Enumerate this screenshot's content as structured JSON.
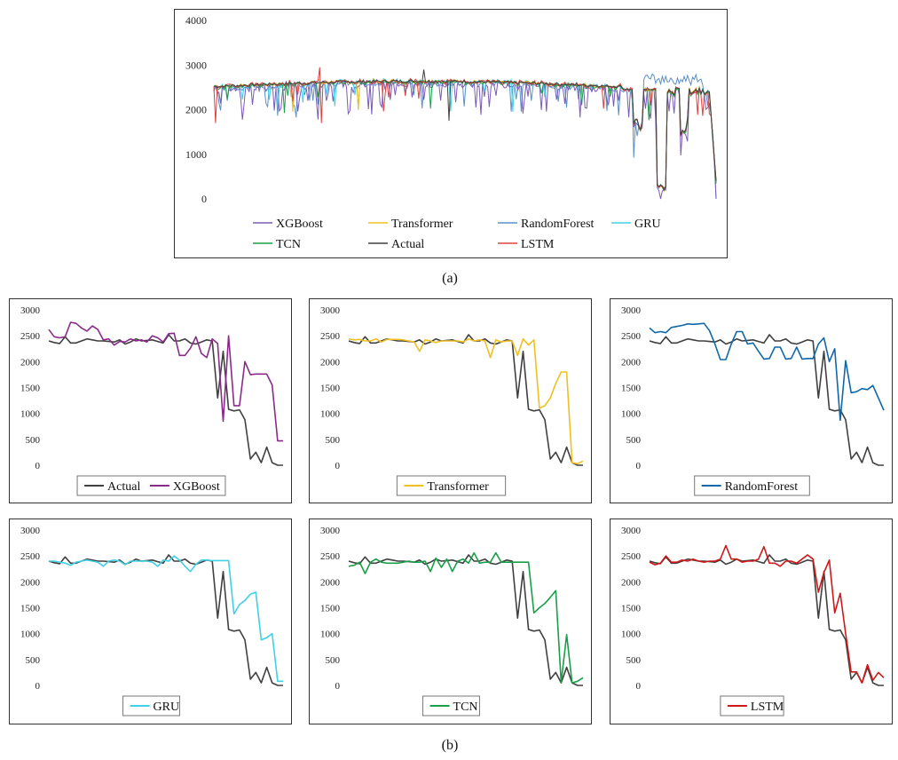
{
  "captions": {
    "a": "(a)",
    "b": "(b)"
  },
  "colors": {
    "Actual": "#404040",
    "XGBoost": "#8b2a8b",
    "Transformer": "#f0c020",
    "RandomForest": "#1068a8",
    "GRU": "#40d0e8",
    "TCN": "#18a048",
    "LSTM": "#d01818",
    "XGBoost_top": "#7a5ab8",
    "RandomForest_top": "#5a90c8",
    "LSTM_top": "#e04040"
  },
  "chart_data": [
    {
      "type": "line",
      "id": "a",
      "title": "",
      "ylim": [
        0,
        4000
      ],
      "yticks": [
        "0",
        "1000",
        "2000",
        "3000",
        "4000"
      ],
      "legend": [
        "XGBoost",
        "Transformer",
        "RandomForest",
        "GRU",
        "TCN",
        "Actual",
        "LSTM"
      ],
      "note": "approximately 300 time steps; series overlap closely",
      "series_profile": {
        "Actual": {
          "base": 2580,
          "drops": [
            [
              250,
              1450
            ],
            [
              268,
              50
            ],
            [
              280,
              1500
            ],
            [
              298,
              0
            ]
          ]
        }
      }
    },
    {
      "type": "line",
      "id": "b1",
      "ylim": [
        0,
        3000
      ],
      "yticks": [
        "0",
        "500",
        "1000",
        "1500",
        "2000",
        "2500",
        "3000"
      ],
      "legend": [
        "Actual",
        "XGBoost"
      ],
      "series": [
        {
          "name": "Actual",
          "values": [
            2400,
            2370,
            2350,
            2480,
            2360,
            2360,
            2400,
            2440,
            2420,
            2400,
            2400,
            2390,
            2380,
            2420,
            2340,
            2380,
            2440,
            2400,
            2410,
            2420,
            2390,
            2360,
            2520,
            2400,
            2400,
            2440,
            2360,
            2340,
            2380,
            2420,
            2400,
            1300,
            2200,
            1080,
            1050,
            1070,
            880,
            120,
            250,
            50,
            350,
            50,
            0,
            0
          ]
        },
        {
          "name": "XGBoost",
          "values": [
            2620,
            2480,
            2460,
            2480,
            2760,
            2740,
            2650,
            2590,
            2690,
            2620,
            2420,
            2440,
            2320,
            2390,
            2380,
            2440,
            2400,
            2420,
            2380,
            2500,
            2460,
            2380,
            2540,
            2550,
            2120,
            2120,
            2260,
            2480,
            2160,
            2080,
            2440,
            2350,
            850,
            2500,
            1150,
            1150,
            2000,
            1750,
            1760,
            1760,
            1760,
            1550,
            470,
            470
          ]
        }
      ]
    },
    {
      "type": "line",
      "id": "b2",
      "ylim": [
        0,
        3000
      ],
      "yticks": [
        "0",
        "500",
        "1000",
        "1500",
        "2000",
        "2500",
        "3000"
      ],
      "legend": [
        "Transformer"
      ],
      "series": [
        {
          "name": "Actual",
          "values": [
            2400,
            2370,
            2350,
            2480,
            2360,
            2360,
            2400,
            2440,
            2420,
            2400,
            2400,
            2390,
            2380,
            2420,
            2340,
            2380,
            2440,
            2400,
            2410,
            2420,
            2390,
            2360,
            2520,
            2400,
            2400,
            2440,
            2360,
            2340,
            2380,
            2420,
            2400,
            1300,
            2200,
            1080,
            1050,
            1070,
            880,
            120,
            250,
            50,
            350,
            50,
            0,
            0
          ]
        },
        {
          "name": "Transformer",
          "values": [
            2440,
            2420,
            2430,
            2400,
            2400,
            2440,
            2380,
            2430,
            2430,
            2430,
            2420,
            2400,
            2380,
            2200,
            2420,
            2400,
            2370,
            2400,
            2400,
            2400,
            2400,
            2380,
            2440,
            2400,
            2420,
            2400,
            2080,
            2420,
            2380,
            2400,
            2400,
            2120,
            2440,
            2320,
            2420,
            1100,
            1150,
            1300,
            1580,
            1800,
            1800,
            50,
            30,
            80
          ]
        }
      ]
    },
    {
      "type": "line",
      "id": "b3",
      "ylim": [
        0,
        3000
      ],
      "yticks": [
        "0",
        "500",
        "1000",
        "1500",
        "2000",
        "2500",
        "3000"
      ],
      "legend": [
        "RandomForest"
      ],
      "series": [
        {
          "name": "Actual",
          "values": [
            2400,
            2370,
            2350,
            2480,
            2360,
            2360,
            2400,
            2440,
            2420,
            2400,
            2400,
            2390,
            2380,
            2420,
            2340,
            2380,
            2440,
            2400,
            2410,
            2420,
            2390,
            2360,
            2520,
            2400,
            2400,
            2440,
            2360,
            2340,
            2380,
            2420,
            2400,
            1300,
            2200,
            1080,
            1050,
            1070,
            880,
            120,
            250,
            50,
            350,
            50,
            0,
            0
          ]
        },
        {
          "name": "RandomForest",
          "values": [
            2650,
            2560,
            2580,
            2560,
            2660,
            2680,
            2700,
            2730,
            2720,
            2730,
            2740,
            2600,
            2340,
            2040,
            2040,
            2340,
            2580,
            2580,
            2340,
            2360,
            2200,
            2050,
            2060,
            2280,
            2280,
            2050,
            2060,
            2280,
            2050,
            2060,
            2060,
            2340,
            2460,
            2000,
            2250,
            870,
            2020,
            1400,
            1420,
            1480,
            1460,
            1540,
            1300,
            1060
          ]
        }
      ]
    },
    {
      "type": "line",
      "id": "b4",
      "ylim": [
        0,
        3000
      ],
      "yticks": [
        "0",
        "500",
        "1000",
        "1500",
        "2000",
        "2500",
        "3000"
      ],
      "legend": [
        "GRU"
      ],
      "series": [
        {
          "name": "Actual",
          "values": [
            2400,
            2370,
            2350,
            2480,
            2360,
            2360,
            2400,
            2440,
            2420,
            2400,
            2400,
            2390,
            2380,
            2420,
            2340,
            2380,
            2440,
            2400,
            2410,
            2420,
            2390,
            2360,
            2520,
            2400,
            2400,
            2440,
            2360,
            2340,
            2380,
            2420,
            2400,
            1300,
            2200,
            1080,
            1050,
            1070,
            880,
            120,
            250,
            50,
            350,
            50,
            0,
            0
          ]
        },
        {
          "name": "GRU",
          "values": [
            2400,
            2400,
            2380,
            2360,
            2320,
            2380,
            2400,
            2420,
            2400,
            2380,
            2300,
            2400,
            2420,
            2400,
            2330,
            2400,
            2400,
            2400,
            2400,
            2380,
            2300,
            2420,
            2400,
            2500,
            2420,
            2300,
            2200,
            2340,
            2420,
            2420,
            2410,
            2410,
            2410,
            2410,
            1380,
            1560,
            1640,
            1760,
            1800,
            880,
            920,
            1000,
            80,
            80
          ]
        }
      ]
    },
    {
      "type": "line",
      "id": "b5",
      "ylim": [
        0,
        3000
      ],
      "yticks": [
        "0",
        "500",
        "1000",
        "1500",
        "2000",
        "2500",
        "3000"
      ],
      "legend": [
        "TCN"
      ],
      "series": [
        {
          "name": "Actual",
          "values": [
            2400,
            2370,
            2350,
            2480,
            2360,
            2360,
            2400,
            2440,
            2420,
            2400,
            2400,
            2390,
            2380,
            2420,
            2340,
            2380,
            2440,
            2400,
            2410,
            2420,
            2390,
            2360,
            2520,
            2400,
            2400,
            2440,
            2360,
            2340,
            2380,
            2420,
            2400,
            1300,
            2200,
            1080,
            1050,
            1070,
            880,
            120,
            250,
            50,
            350,
            50,
            0,
            0
          ]
        },
        {
          "name": "TCN",
          "values": [
            2300,
            2320,
            2380,
            2160,
            2380,
            2440,
            2380,
            2360,
            2360,
            2360,
            2380,
            2400,
            2380,
            2380,
            2400,
            2200,
            2460,
            2280,
            2440,
            2200,
            2400,
            2440,
            2360,
            2560,
            2360,
            2380,
            2380,
            2560,
            2380,
            2380,
            2380,
            2380,
            2380,
            2380,
            1400,
            1500,
            1580,
            1700,
            1830,
            60,
            980,
            50,
            80,
            150
          ]
        }
      ]
    },
    {
      "type": "line",
      "id": "b6",
      "ylim": [
        0,
        3000
      ],
      "yticks": [
        "0",
        "500",
        "1000",
        "1500",
        "2000",
        "2500",
        "3000"
      ],
      "legend": [
        "LSTM"
      ],
      "series": [
        {
          "name": "Actual",
          "values": [
            2400,
            2370,
            2350,
            2480,
            2360,
            2360,
            2400,
            2440,
            2420,
            2400,
            2400,
            2390,
            2380,
            2420,
            2340,
            2380,
            2440,
            2400,
            2410,
            2420,
            2390,
            2360,
            2520,
            2400,
            2400,
            2440,
            2360,
            2340,
            2380,
            2420,
            2400,
            1300,
            2200,
            1080,
            1050,
            1070,
            880,
            120,
            250,
            50,
            350,
            50,
            0,
            0
          ]
        },
        {
          "name": "LSTM",
          "values": [
            2380,
            2330,
            2360,
            2500,
            2380,
            2380,
            2420,
            2400,
            2440,
            2400,
            2380,
            2400,
            2400,
            2440,
            2700,
            2440,
            2440,
            2380,
            2400,
            2400,
            2440,
            2680,
            2360,
            2360,
            2300,
            2400,
            2400,
            2360,
            2440,
            2520,
            2440,
            1800,
            2180,
            2420,
            1400,
            1780,
            1000,
            260,
            260,
            50,
            400,
            100,
            250,
            150
          ]
        }
      ]
    }
  ]
}
